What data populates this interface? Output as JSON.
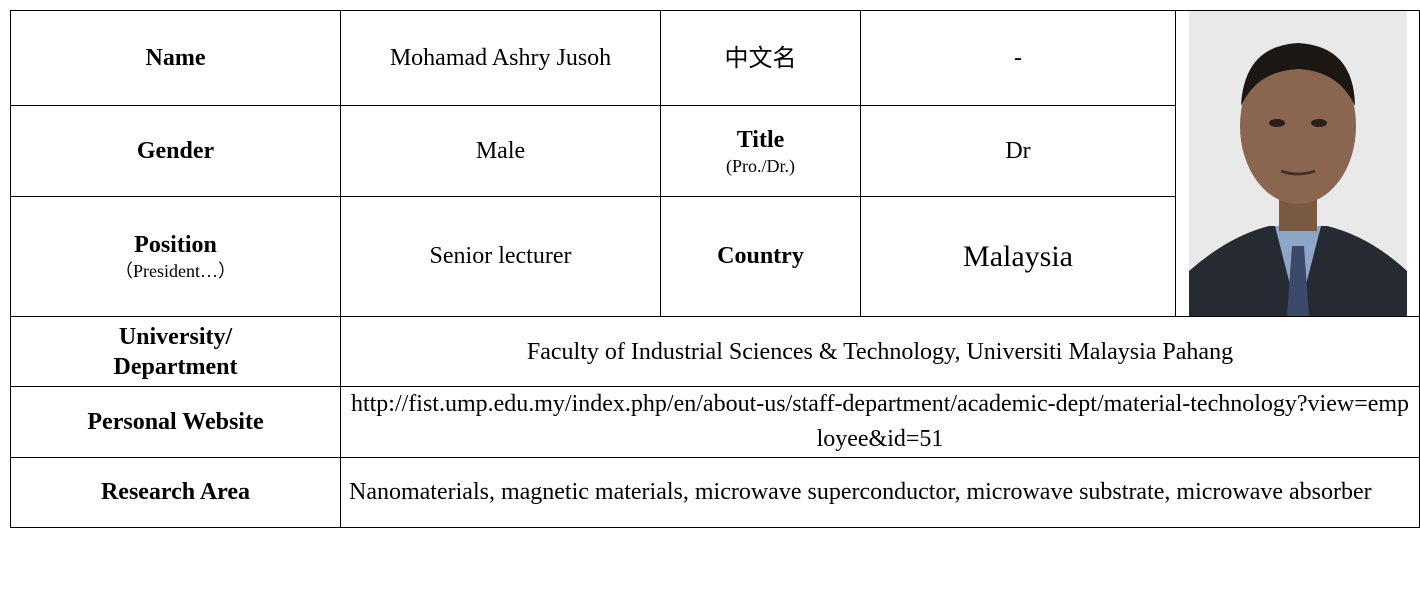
{
  "profile": {
    "name_label": "Name",
    "name": "Mohamad Ashry Jusoh",
    "chinese_name_label": "中文名",
    "chinese_name": "-",
    "gender_label": "Gender",
    "gender": "Male",
    "title_label": "Title",
    "title_hint": "(Pro./Dr.)",
    "title": "Dr",
    "position_label": "Position",
    "position_hint": "（President…）",
    "position": "Senior lecturer",
    "country_label": "Country",
    "country": "Malaysia",
    "university_label": [
      "University/",
      "Department"
    ],
    "university": "Faculty of Industrial Sciences & Technology, Universiti Malaysia Pahang",
    "website_label": "Personal Website",
    "website": "http://fist.ump.edu.my/index.php/en/about-us/staff-department/academic-dept/material-technology?view=employee&id=51",
    "research_label": "Research Area",
    "research": "Nanomaterials, magnetic materials, microwave superconductor, microwave substrate, microwave absorber"
  }
}
